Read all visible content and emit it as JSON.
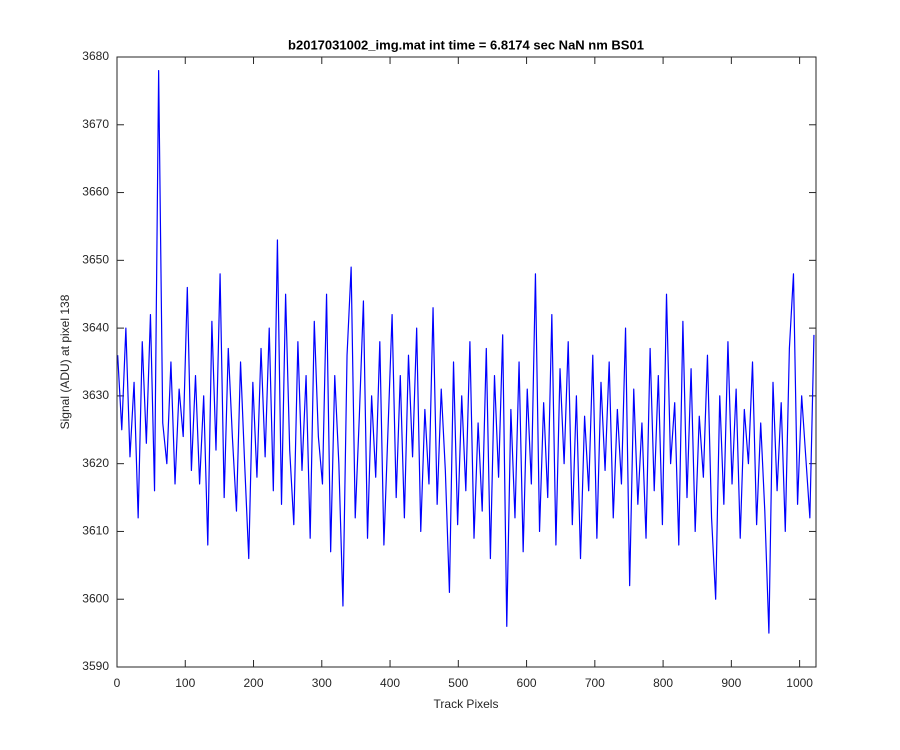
{
  "chart_data": {
    "type": "line",
    "title": "b2017031002_img.mat int time = 6.8174 sec  NaN nm BS01",
    "x_label": "Track Pixels",
    "y_label": "Signal (ADU) at pixel 138",
    "xlim": [
      0,
      1024
    ],
    "ylim": [
      3590,
      3680
    ],
    "xticks": [
      0,
      100,
      200,
      300,
      400,
      500,
      600,
      700,
      800,
      900,
      1000
    ],
    "yticks": [
      3590,
      3600,
      3610,
      3620,
      3630,
      3640,
      3650,
      3660,
      3670,
      3680
    ],
    "grid": false,
    "x": [
      1,
      7,
      13,
      19,
      25,
      31,
      37,
      43,
      49,
      55,
      61,
      67,
      73,
      79,
      85,
      91,
      97,
      103,
      109,
      115,
      121,
      127,
      133,
      139,
      145,
      151,
      157,
      163,
      169,
      175,
      181,
      187,
      193,
      199,
      205,
      211,
      217,
      223,
      229,
      235,
      241,
      247,
      253,
      259,
      265,
      271,
      277,
      283,
      289,
      295,
      301,
      307,
      313,
      319,
      325,
      331,
      337,
      343,
      349,
      355,
      361,
      367,
      373,
      379,
      385,
      391,
      397,
      403,
      409,
      415,
      421,
      427,
      433,
      439,
      445,
      451,
      457,
      463,
      469,
      475,
      481,
      487,
      493,
      499,
      505,
      511,
      517,
      523,
      529,
      535,
      541,
      547,
      553,
      559,
      565,
      571,
      577,
      583,
      589,
      595,
      601,
      607,
      613,
      619,
      625,
      631,
      637,
      643,
      649,
      655,
      661,
      667,
      673,
      679,
      685,
      691,
      697,
      703,
      709,
      715,
      721,
      727,
      733,
      739,
      745,
      751,
      757,
      763,
      769,
      775,
      781,
      787,
      793,
      799,
      805,
      811,
      817,
      823,
      829,
      835,
      841,
      847,
      853,
      859,
      865,
      871,
      877,
      883,
      889,
      895,
      901,
      907,
      913,
      919,
      925,
      931,
      937,
      943,
      949,
      955,
      961,
      967,
      973,
      979,
      985,
      991,
      997,
      1003,
      1009,
      1015,
      1021
    ],
    "series": [
      {
        "name": "signal",
        "color": "#0000ff",
        "values": [
          3636,
          3625,
          3640,
          3621,
          3632,
          3612,
          3638,
          3623,
          3642,
          3616,
          3678,
          3626,
          3620,
          3635,
          3617,
          3631,
          3624,
          3646,
          3619,
          3633,
          3617,
          3630,
          3608,
          3641,
          3622,
          3648,
          3615,
          3637,
          3624,
          3613,
          3635,
          3620,
          3606,
          3632,
          3618,
          3637,
          3621,
          3640,
          3616,
          3653,
          3614,
          3645,
          3622,
          3611,
          3638,
          3619,
          3633,
          3609,
          3641,
          3624,
          3617,
          3645,
          3607,
          3633,
          3620,
          3599,
          3636,
          3649,
          3612,
          3627,
          3644,
          3609,
          3630,
          3618,
          3638,
          3608,
          3625,
          3642,
          3615,
          3633,
          3612,
          3636,
          3621,
          3640,
          3610,
          3628,
          3617,
          3643,
          3614,
          3631,
          3619,
          3601,
          3635,
          3611,
          3630,
          3616,
          3638,
          3609,
          3626,
          3613,
          3637,
          3606,
          3633,
          3618,
          3639,
          3596,
          3628,
          3612,
          3635,
          3607,
          3631,
          3617,
          3648,
          3610,
          3629,
          3615,
          3642,
          3608,
          3634,
          3620,
          3638,
          3611,
          3630,
          3606,
          3627,
          3616,
          3636,
          3609,
          3632,
          3619,
          3635,
          3612,
          3628,
          3617,
          3640,
          3602,
          3631,
          3614,
          3626,
          3609,
          3637,
          3616,
          3633,
          3611,
          3645,
          3620,
          3629,
          3608,
          3641,
          3615,
          3634,
          3610,
          3627,
          3618,
          3636,
          3612,
          3600,
          3630,
          3614,
          3638,
          3617,
          3631,
          3609,
          3628,
          3620,
          3635,
          3611,
          3626,
          3613,
          3595,
          3632,
          3616,
          3629,
          3610,
          3637,
          3648,
          3614,
          3630,
          3621,
          3612,
          3639
        ]
      }
    ]
  }
}
